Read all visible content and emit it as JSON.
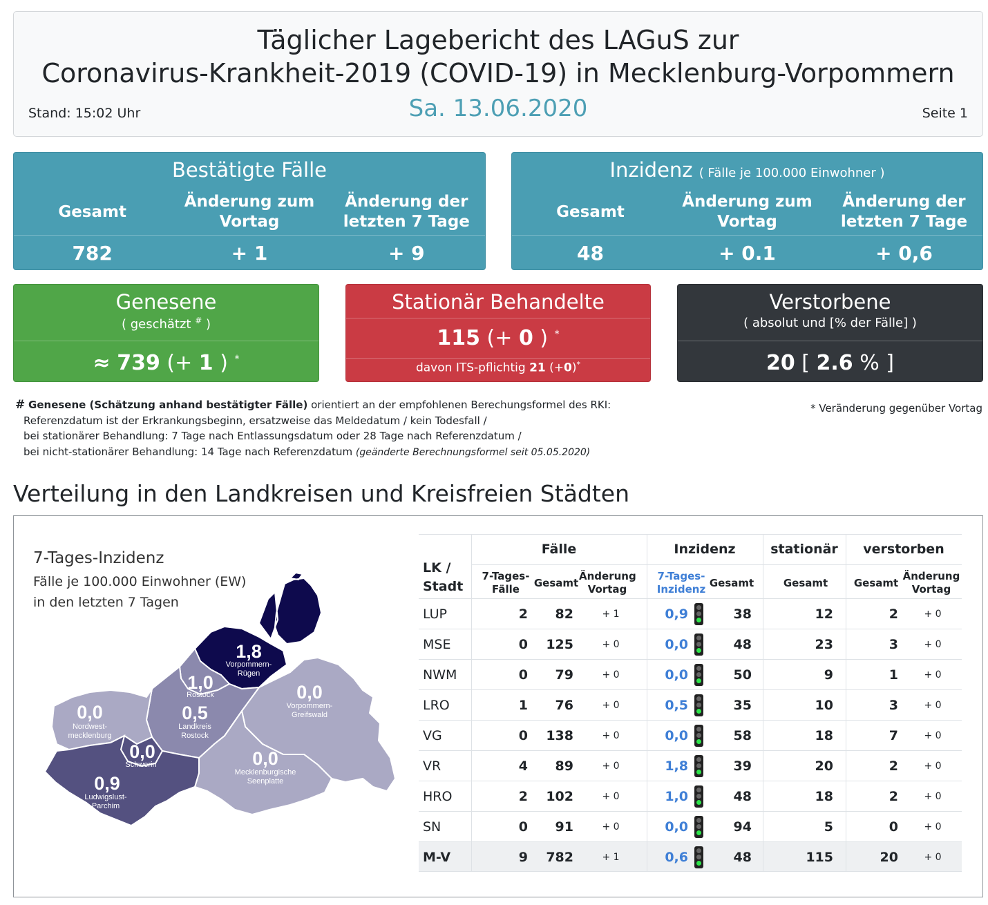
{
  "header": {
    "title_line1": "Täglicher Lagebericht des LAGuS zur",
    "title_line2": "Coronavirus-Krankheit-2019 (COVID-19) in Mecklenburg-Vorpommern",
    "stand": "Stand: 15:02 Uhr",
    "date": "Sa. 13.06.2020",
    "page": "Seite 1"
  },
  "confirmed": {
    "title": "Bestätigte Fälle",
    "col1_label": "Gesamt",
    "col2_label": "Änderung zum Vortag",
    "col3_label": "Änderung der letzten 7 Tage",
    "total": "782",
    "change_day": "+ 1",
    "change_7d": "+ 9"
  },
  "incidence": {
    "title": "Inzidenz",
    "subtitle": "( Fälle je 100.000 Einwohner )",
    "col1_label": "Gesamt",
    "col2_label": "Änderung zum Vortag",
    "col3_label": "Änderung der letzten 7 Tage",
    "total": "48",
    "change_day": "+ 0.1",
    "change_7d": "+ 0,6"
  },
  "recovered": {
    "title": "Genesene",
    "subtitle_pre": "( geschätzt",
    "subtitle_mark": "#",
    "subtitle_post": ")",
    "approx": "≈",
    "value": "739",
    "change_pre": "(+",
    "change": "1",
    "change_post": ")",
    "star": "*"
  },
  "hospital": {
    "title": "Stationär Behandelte",
    "value": "115",
    "change_pre": "(+",
    "change": "0",
    "change_post": ")",
    "star": "*",
    "its_pre": "davon ITS-pflichtig",
    "its_value": "21",
    "its_change_pre": "(+",
    "its_change": "0",
    "its_change_post": ")",
    "its_star": "*"
  },
  "deaths": {
    "title": "Verstorbene",
    "subtitle": "( absolut und [% der Fälle] )",
    "value": "20",
    "bracket_open": "[",
    "percent": "2.6",
    "percent_sign": "%",
    "bracket_close": "]"
  },
  "footnote": {
    "hash": "#",
    "bold": "Genesene (Schätzung anhand bestätigter Fälle)",
    "line1_rest": "orientiert an der empfohlenen Berechungsformel des RKI:",
    "line2": "Referenzdatum ist der Erkrankungsbeginn, ersatzweise das Meldedatum / kein Todesfall /",
    "line3": "bei stationärer Behandlung: 7 Tage nach Entlassungsdatum oder 28 Tage nach Referenzdatum /",
    "line4": "bei nicht-stationärer Behandlung: 14 Tage nach Referenzdatum",
    "line4_italic": "(geänderte Berechnungsformel seit 05.05.2020)",
    "star_note": "* Veränderung gegenüber Vortag"
  },
  "section_title": "Verteilung in den Landkreisen und Kreisfreien Städten",
  "map": {
    "title": "7-Tages-Inzidenz",
    "sub1": "Fälle je 100.000 Einwohner (EW)",
    "sub2": "in den letzten 7 Tagen",
    "regions": [
      {
        "value": "1,8",
        "name1": "Vorpommern-",
        "name2": "Rügen"
      },
      {
        "value": "1,0",
        "name1": "Rostock",
        "name2": ""
      },
      {
        "value": "0,0",
        "name1": "Vorpommern-",
        "name2": "Greifswald"
      },
      {
        "value": "0,0",
        "name1": "Nordwest-",
        "name2": "mecklenburg"
      },
      {
        "value": "0,5",
        "name1": "Landkreis",
        "name2": "Rostock"
      },
      {
        "value": "0,0",
        "name1": "Schwerin",
        "name2": ""
      },
      {
        "value": "0,0",
        "name1": "Mecklenburgische",
        "name2": "Seenplatte"
      },
      {
        "value": "0,9",
        "name1": "Ludwigslust-",
        "name2": "Parchim"
      }
    ],
    "colors": {
      "dark": "#0e0a4d",
      "mid_dark": "#545180",
      "mid": "#8b89ad",
      "light": "#aaa9c4"
    }
  },
  "table": {
    "headers": {
      "lk": "LK /",
      "stadt": "Stadt",
      "faelle": "Fälle",
      "inzidenz": "Inzidenz",
      "stationaer": "stationär",
      "verstorben": "verstorben",
      "f7_1": "7-Tages-",
      "f7_2": "Fälle",
      "gesamt": "Gesamt",
      "aend1": "Änderung",
      "aend2": "Vortag",
      "i7_1": "7-Tages-",
      "i7_2": "Inzidenz"
    },
    "rows": [
      {
        "name": "LUP",
        "f7": "2",
        "fg": "82",
        "fa": "+ 1",
        "i7": "0,9",
        "ig": "38",
        "sg": "12",
        "vg": "2",
        "va": "+ 0",
        "light": "green"
      },
      {
        "name": "MSE",
        "f7": "0",
        "fg": "125",
        "fa": "+ 0",
        "i7": "0,0",
        "ig": "48",
        "sg": "23",
        "vg": "3",
        "va": "+ 0",
        "light": "green"
      },
      {
        "name": "NWM",
        "f7": "0",
        "fg": "79",
        "fa": "+ 0",
        "i7": "0,0",
        "ig": "50",
        "sg": "9",
        "vg": "1",
        "va": "+ 0",
        "light": "green"
      },
      {
        "name": "LRO",
        "f7": "1",
        "fg": "76",
        "fa": "+ 0",
        "i7": "0,5",
        "ig": "35",
        "sg": "10",
        "vg": "3",
        "va": "+ 0",
        "light": "green"
      },
      {
        "name": "VG",
        "f7": "0",
        "fg": "138",
        "fa": "+ 0",
        "i7": "0,0",
        "ig": "58",
        "sg": "18",
        "vg": "7",
        "va": "+ 0",
        "light": "green"
      },
      {
        "name": "VR",
        "f7": "4",
        "fg": "89",
        "fa": "+ 0",
        "i7": "1,8",
        "ig": "39",
        "sg": "20",
        "vg": "2",
        "va": "+ 0",
        "light": "green"
      },
      {
        "name": "HRO",
        "f7": "2",
        "fg": "102",
        "fa": "+ 0",
        "i7": "1,0",
        "ig": "48",
        "sg": "18",
        "vg": "2",
        "va": "+ 0",
        "light": "green"
      },
      {
        "name": "SN",
        "f7": "0",
        "fg": "91",
        "fa": "+ 0",
        "i7": "0,0",
        "ig": "94",
        "sg": "5",
        "vg": "0",
        "va": "+ 0",
        "light": "green"
      },
      {
        "name": "M-V",
        "f7": "9",
        "fg": "782",
        "fa": "+ 1",
        "i7": "0,6",
        "ig": "48",
        "sg": "115",
        "vg": "20",
        "va": "+ 0",
        "light": "green",
        "total": true
      }
    ]
  }
}
